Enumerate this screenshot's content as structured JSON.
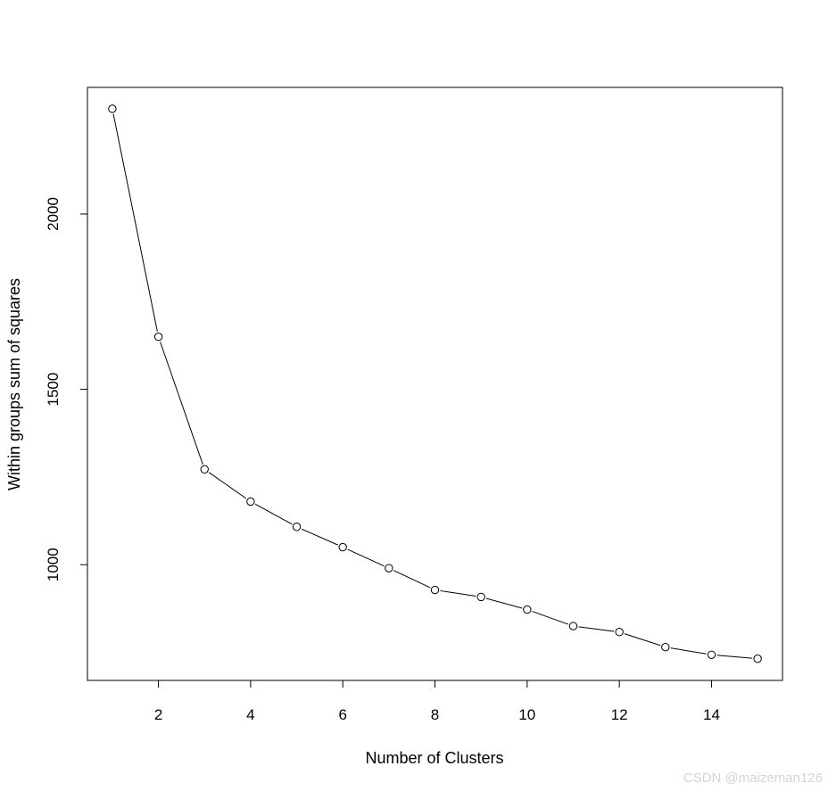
{
  "chart_data": {
    "type": "line",
    "title": "",
    "xlabel": "Number of Clusters",
    "ylabel": "Within groups sum of squares",
    "x": [
      1,
      2,
      3,
      4,
      5,
      6,
      7,
      8,
      9,
      10,
      11,
      12,
      13,
      14,
      15
    ],
    "series": [
      {
        "values": [
          2300,
          1650,
          1272,
          1180,
          1108,
          1050,
          990,
          928,
          908,
          872,
          825,
          808,
          765,
          743,
          732
        ]
      }
    ],
    "xlim": [
      0.46,
      15.54
    ],
    "ylim": [
      670,
      2361
    ],
    "xticks": [
      2,
      4,
      6,
      8,
      10,
      12,
      14
    ],
    "yticks": [
      1000,
      1500,
      2000
    ],
    "grid": false,
    "markers": "open-circle",
    "line_color": "#000000"
  },
  "watermark": "CSDN @maizeman126"
}
